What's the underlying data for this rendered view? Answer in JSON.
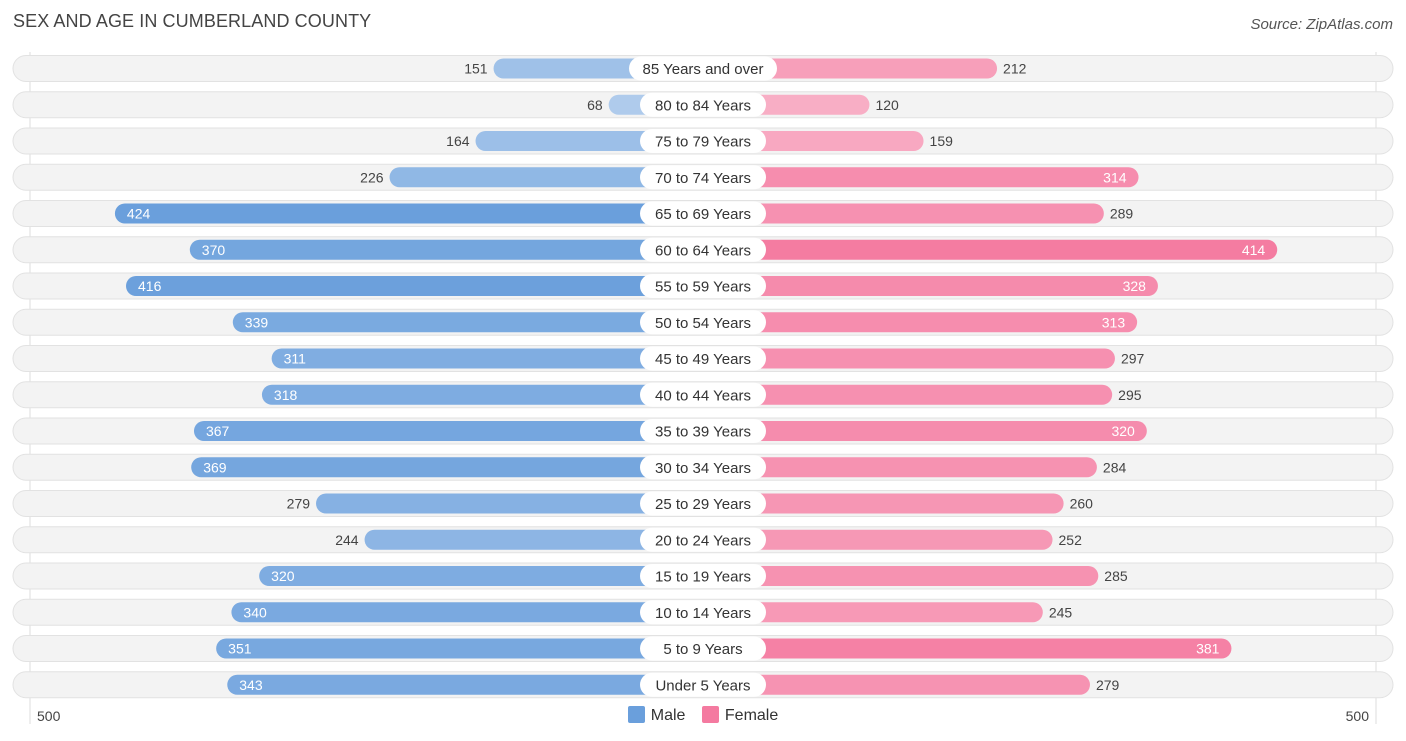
{
  "chart_data": {
    "type": "bar",
    "orientation": "horizontal-diverging",
    "title": "SEX AND AGE IN CUMBERLAND COUNTY",
    "source": "Source: ZipAtlas.com",
    "categories": [
      "85 Years and over",
      "80 to 84 Years",
      "75 to 79 Years",
      "70 to 74 Years",
      "65 to 69 Years",
      "60 to 64 Years",
      "55 to 59 Years",
      "50 to 54 Years",
      "45 to 49 Years",
      "40 to 44 Years",
      "35 to 39 Years",
      "30 to 34 Years",
      "25 to 29 Years",
      "20 to 24 Years",
      "15 to 19 Years",
      "10 to 14 Years",
      "5 to 9 Years",
      "Under 5 Years"
    ],
    "series": [
      {
        "name": "Male",
        "color": "#6a9fdc",
        "values": [
          151,
          68,
          164,
          226,
          424,
          370,
          416,
          339,
          311,
          318,
          367,
          369,
          279,
          244,
          320,
          340,
          351,
          343
        ]
      },
      {
        "name": "Female",
        "color": "#f47aa0",
        "values": [
          212,
          120,
          159,
          314,
          289,
          414,
          328,
          313,
          297,
          295,
          320,
          284,
          260,
          252,
          285,
          245,
          381,
          279
        ]
      }
    ],
    "xlim": [
      -500,
      500
    ],
    "axis_labels": {
      "left": "500",
      "right": "500"
    },
    "legend": [
      "Male",
      "Female"
    ]
  }
}
